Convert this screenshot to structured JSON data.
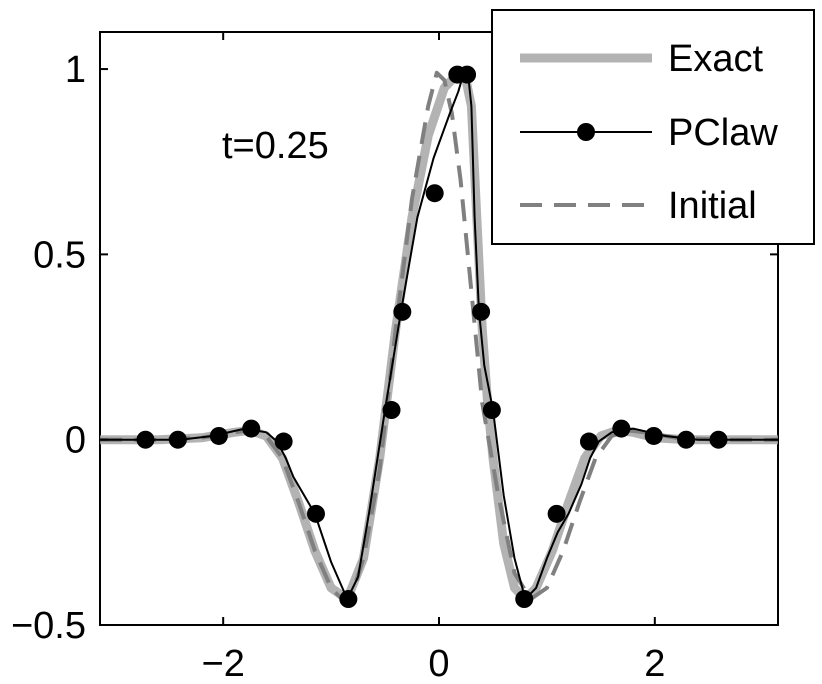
{
  "chart_data": {
    "type": "line",
    "title": "",
    "xlabel": "",
    "ylabel": "",
    "xlim": [
      -3.1416,
      3.1416
    ],
    "ylim": [
      -0.5,
      1.1
    ],
    "xticks": [
      {
        "value": -2,
        "label": "−2"
      },
      {
        "value": 0,
        "label": "0"
      },
      {
        "value": 2,
        "label": "2"
      }
    ],
    "yticks": [
      {
        "value": -0.5,
        "label": "−0.5"
      },
      {
        "value": 0,
        "label": "0"
      },
      {
        "value": 0.5,
        "label": "0.5"
      },
      {
        "value": 1,
        "label": "1"
      }
    ],
    "grid": false,
    "legend_position": "top-right",
    "annotation": "t=0.25",
    "series": [
      {
        "name": "Exact",
        "style": "solid-thick",
        "color": "#b3b3b3",
        "x": [
          -3.14,
          -2.6,
          -2.2,
          -1.9,
          -1.75,
          -1.6,
          -1.45,
          -1.3,
          -1.15,
          -1.0,
          -0.85,
          -0.7,
          -0.55,
          -0.4,
          -0.25,
          -0.1,
          0.05,
          0.15,
          0.25,
          0.3,
          0.35,
          0.4,
          0.45,
          0.5,
          0.6,
          0.7,
          0.8,
          0.9,
          1.05,
          1.2,
          1.35,
          1.5,
          1.65,
          1.8,
          2.0,
          2.3,
          2.7,
          3.14
        ],
        "y": [
          0.0,
          0.0,
          0.005,
          0.02,
          0.025,
          0.01,
          -0.05,
          -0.17,
          -0.3,
          -0.4,
          -0.43,
          -0.32,
          -0.05,
          0.3,
          0.6,
          0.82,
          0.95,
          0.98,
          0.97,
          0.9,
          0.6,
          0.3,
          0.1,
          -0.05,
          -0.28,
          -0.4,
          -0.43,
          -0.4,
          -0.3,
          -0.17,
          -0.05,
          0.01,
          0.025,
          0.02,
          0.005,
          0.0,
          0.0,
          0.0
        ]
      },
      {
        "name": "PClaw",
        "style": "solid-thin-markers",
        "color": "#000000",
        "x": [
          -3.14,
          -2.7,
          -2.4,
          -2.1,
          -1.8,
          -1.6,
          -1.5,
          -1.42,
          -1.35,
          -1.25,
          -1.15,
          -1.0,
          -0.85,
          -0.75,
          -0.65,
          -0.5,
          -0.35,
          -0.2,
          -0.05,
          0.1,
          0.18,
          0.22,
          0.27,
          0.3,
          0.33,
          0.37,
          0.42,
          0.5,
          0.6,
          0.7,
          0.8,
          0.9,
          1.0,
          1.1,
          1.2,
          1.32,
          1.4,
          1.48,
          1.6,
          1.8,
          2.1,
          2.4,
          2.7,
          3.14
        ],
        "y": [
          0.0,
          0.0,
          0.0,
          0.01,
          0.03,
          0.02,
          -0.005,
          -0.05,
          -0.1,
          -0.15,
          -0.2,
          -0.33,
          -0.43,
          -0.37,
          -0.2,
          0.08,
          0.35,
          0.6,
          0.76,
          0.88,
          0.94,
          0.98,
          0.985,
          0.9,
          0.6,
          0.35,
          0.2,
          0.08,
          -0.15,
          -0.32,
          -0.43,
          -0.4,
          -0.32,
          -0.25,
          -0.2,
          -0.12,
          -0.05,
          -0.005,
          0.02,
          0.03,
          0.01,
          0.0,
          0.0,
          0.0
        ],
        "markers": {
          "x": [
            -2.72,
            -2.42,
            -2.04,
            -1.74,
            -1.44,
            -1.14,
            -0.84,
            -0.44,
            -0.34,
            -0.04,
            0.17,
            0.26,
            0.39,
            0.49,
            0.79,
            1.09,
            1.39,
            1.69,
            1.99,
            2.29,
            2.59
          ],
          "y": [
            0.0,
            0.0,
            0.01,
            0.03,
            -0.005,
            -0.2,
            -0.43,
            0.08,
            0.345,
            0.665,
            0.985,
            0.985,
            0.345,
            0.08,
            -0.43,
            -0.2,
            -0.005,
            0.03,
            0.01,
            0.0,
            0.0
          ]
        }
      },
      {
        "name": "Initial",
        "style": "dashed",
        "color": "#808080",
        "x": [
          -3.14,
          -2.6,
          -2.2,
          -1.9,
          -1.75,
          -1.6,
          -1.45,
          -1.3,
          -1.15,
          -1.0,
          -0.9,
          -0.8,
          -0.7,
          -0.55,
          -0.4,
          -0.25,
          -0.1,
          -0.02,
          0.05,
          0.12,
          0.2,
          0.3,
          0.4,
          0.55,
          0.7,
          0.85,
          1.0,
          1.15,
          1.3,
          1.45,
          1.6,
          1.75,
          1.9,
          2.2,
          2.6,
          3.14
        ],
        "y": [
          0.0,
          0.0,
          0.005,
          0.02,
          0.025,
          0.01,
          -0.05,
          -0.17,
          -0.3,
          -0.4,
          -0.43,
          -0.41,
          -0.32,
          -0.08,
          0.3,
          0.65,
          0.9,
          0.99,
          0.97,
          0.88,
          0.7,
          0.4,
          0.1,
          -0.15,
          -0.36,
          -0.43,
          -0.4,
          -0.3,
          -0.17,
          -0.05,
          0.01,
          0.025,
          0.02,
          0.005,
          0.0,
          0.0
        ]
      }
    ]
  }
}
